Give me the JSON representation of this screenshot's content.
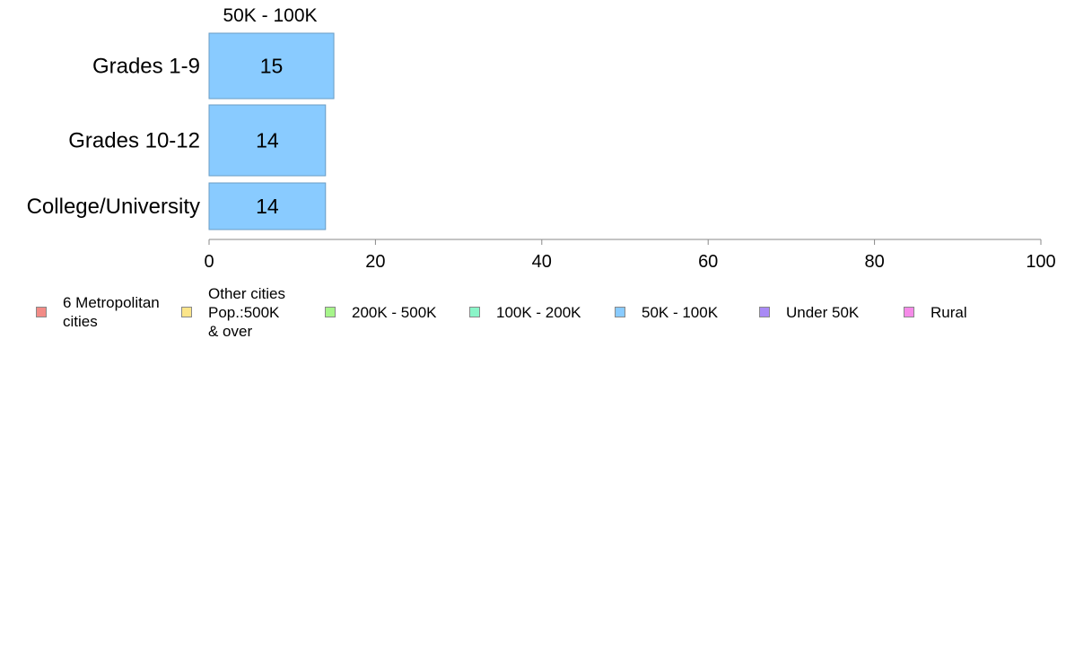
{
  "chart_data": {
    "type": "bar",
    "orientation": "horizontal",
    "panel_title": "50K - 100K",
    "categories": [
      "Grades 1-9",
      "Grades 10-12",
      "College/University"
    ],
    "series": [
      {
        "name": "50K - 100K",
        "color": "#89cbff",
        "values": [
          15,
          14,
          14
        ],
        "labels": [
          "15",
          "14",
          "14"
        ]
      }
    ],
    "xlim": [
      0,
      100
    ],
    "xticks": [
      0,
      20,
      40,
      60,
      80,
      100
    ],
    "grid": false,
    "legend": {
      "placement": "bottom",
      "items": [
        {
          "label": "6 Metropolitan\n cities",
          "color": "#f28b86"
        },
        {
          "label": "Other cities\nPop.:500K\n & over",
          "color": "#fce58a"
        },
        {
          "label": "200K - 500K",
          "color": "#a6f58a"
        },
        {
          "label": "100K - 200K",
          "color": "#8af5c8"
        },
        {
          "label": "50K - 100K",
          "color": "#89cbff"
        },
        {
          "label": "Under 50K",
          "color": "#a98af5"
        },
        {
          "label": "Rural",
          "color": "#f58ae8"
        }
      ]
    }
  }
}
